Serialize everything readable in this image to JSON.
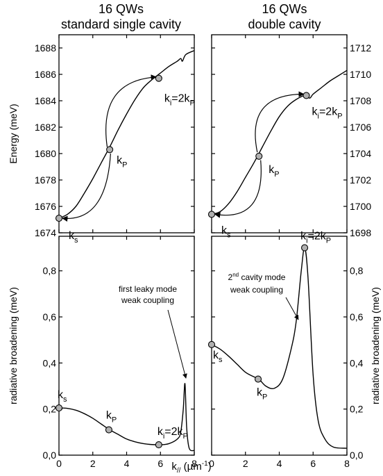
{
  "titles": {
    "left": [
      "16 QWs",
      "standard single cavity"
    ],
    "right": [
      "16 QWs",
      "double cavity"
    ]
  },
  "common_xlabel": "k// (µm-1)",
  "chart_data": [
    {
      "type": "line",
      "panel": "top-left",
      "ylabel": "Energy (meV)",
      "ylim": [
        1674,
        1689
      ],
      "xlim": [
        0,
        8
      ],
      "yticks": [
        1674,
        1676,
        1678,
        1680,
        1682,
        1684,
        1686,
        1688
      ],
      "x": [
        0,
        0.5,
        1,
        1.5,
        2,
        2.5,
        3,
        3.5,
        4,
        4.5,
        5,
        5.5,
        6,
        6.5,
        7,
        7.2,
        7.3,
        7.5,
        8
      ],
      "y": [
        1675.1,
        1675.4,
        1676.0,
        1677.0,
        1678.1,
        1679.3,
        1680.5,
        1681.8,
        1683.0,
        1684.1,
        1685.0,
        1685.6,
        1686.1,
        1686.6,
        1687.0,
        1687.2,
        1687.0,
        1687.5,
        1687.8
      ],
      "points": [
        {
          "x": 0,
          "y": 1675.1,
          "label": "k",
          "sub": "s"
        },
        {
          "x": 3,
          "y": 1680.3,
          "label": "k",
          "sub": "P"
        },
        {
          "x": 5.9,
          "y": 1685.7,
          "label": "k",
          "sub": "i",
          "suffix": "=2k",
          "sub2": "P"
        }
      ]
    },
    {
      "type": "line",
      "panel": "top-right",
      "ylabel": "",
      "ylim": [
        1698,
        1713
      ],
      "xlim": [
        0,
        8
      ],
      "yticks": [
        1698,
        1700,
        1702,
        1704,
        1706,
        1708,
        1710,
        1712
      ],
      "x": [
        0,
        0.5,
        1,
        1.5,
        2,
        2.5,
        3,
        3.5,
        4,
        4.5,
        5,
        5.5,
        5.8,
        6,
        6.5,
        7,
        7.5,
        8
      ],
      "y": [
        1699.4,
        1699.6,
        1700.2,
        1701.1,
        1702.2,
        1703.3,
        1704.5,
        1705.7,
        1706.8,
        1707.6,
        1708.1,
        1708.4,
        1708.2,
        1708.5,
        1709.0,
        1709.5,
        1709.9,
        1710.3
      ],
      "points": [
        {
          "x": 0,
          "y": 1699.4,
          "label": "k",
          "sub": "s"
        },
        {
          "x": 2.8,
          "y": 1703.8,
          "label": "k",
          "sub": "P"
        },
        {
          "x": 5.6,
          "y": 1708.4,
          "label": "k",
          "sub": "i",
          "suffix": "=2k",
          "sub2": "P"
        }
      ]
    },
    {
      "type": "line",
      "panel": "bottom-left",
      "ylabel": "radiative broadening (meV)",
      "ylim": [
        0,
        0.95
      ],
      "xlim": [
        0,
        8
      ],
      "yticks": [
        "0,0",
        "0,2",
        "0,4",
        "0,6",
        "0,8"
      ],
      "xticks": [
        0,
        2,
        4,
        6,
        8
      ],
      "x": [
        0,
        0.5,
        1,
        1.5,
        2,
        2.5,
        3,
        3.5,
        4,
        4.5,
        5,
        5.5,
        6,
        6.5,
        7,
        7.2,
        7.35,
        7.45,
        7.55,
        7.7,
        8
      ],
      "y": [
        0.205,
        0.203,
        0.195,
        0.18,
        0.16,
        0.135,
        0.11,
        0.09,
        0.07,
        0.058,
        0.05,
        0.046,
        0.045,
        0.05,
        0.07,
        0.1,
        0.2,
        0.31,
        0.12,
        0.03,
        0.02
      ],
      "points": [
        {
          "x": 0,
          "y": 0.205,
          "label": "k",
          "sub": "s"
        },
        {
          "x": 2.95,
          "y": 0.11,
          "label": "k",
          "sub": "P"
        },
        {
          "x": 5.9,
          "y": 0.045,
          "label": "k",
          "sub": "i",
          "suffix": "=2k",
          "sub2": "P"
        }
      ],
      "annotation": [
        "first leaky mode",
        "weak coupling"
      ]
    },
    {
      "type": "line",
      "panel": "bottom-right",
      "ylabel": "radiative broadening (meV)",
      "ylim": [
        0,
        0.95
      ],
      "xlim": [
        0,
        8
      ],
      "yticks": [
        "0,0",
        "0,2",
        "0,4",
        "0,6",
        "0,8"
      ],
      "xticks": [
        0,
        2,
        4,
        6,
        8
      ],
      "x": [
        0,
        0.5,
        1,
        1.5,
        2,
        2.5,
        2.8,
        3.2,
        3.7,
        4.2,
        4.7,
        5.0,
        5.3,
        5.5,
        5.7,
        6.0,
        6.3,
        6.7,
        7.2,
        8
      ],
      "y": [
        0.48,
        0.46,
        0.43,
        0.395,
        0.36,
        0.34,
        0.33,
        0.3,
        0.29,
        0.33,
        0.46,
        0.58,
        0.8,
        0.9,
        0.77,
        0.35,
        0.15,
        0.07,
        0.035,
        0.03
      ],
      "points": [
        {
          "x": 0,
          "y": 0.48,
          "label": "k",
          "sub": "s"
        },
        {
          "x": 2.75,
          "y": 0.33,
          "label": "k",
          "sub": "P"
        },
        {
          "x": 5.5,
          "y": 0.9,
          "label": "k",
          "sub": "i",
          "suffix": "=2k",
          "sub2": "P"
        }
      ],
      "annotation": [
        "2nd cavity mode",
        "weak coupling"
      ]
    }
  ]
}
